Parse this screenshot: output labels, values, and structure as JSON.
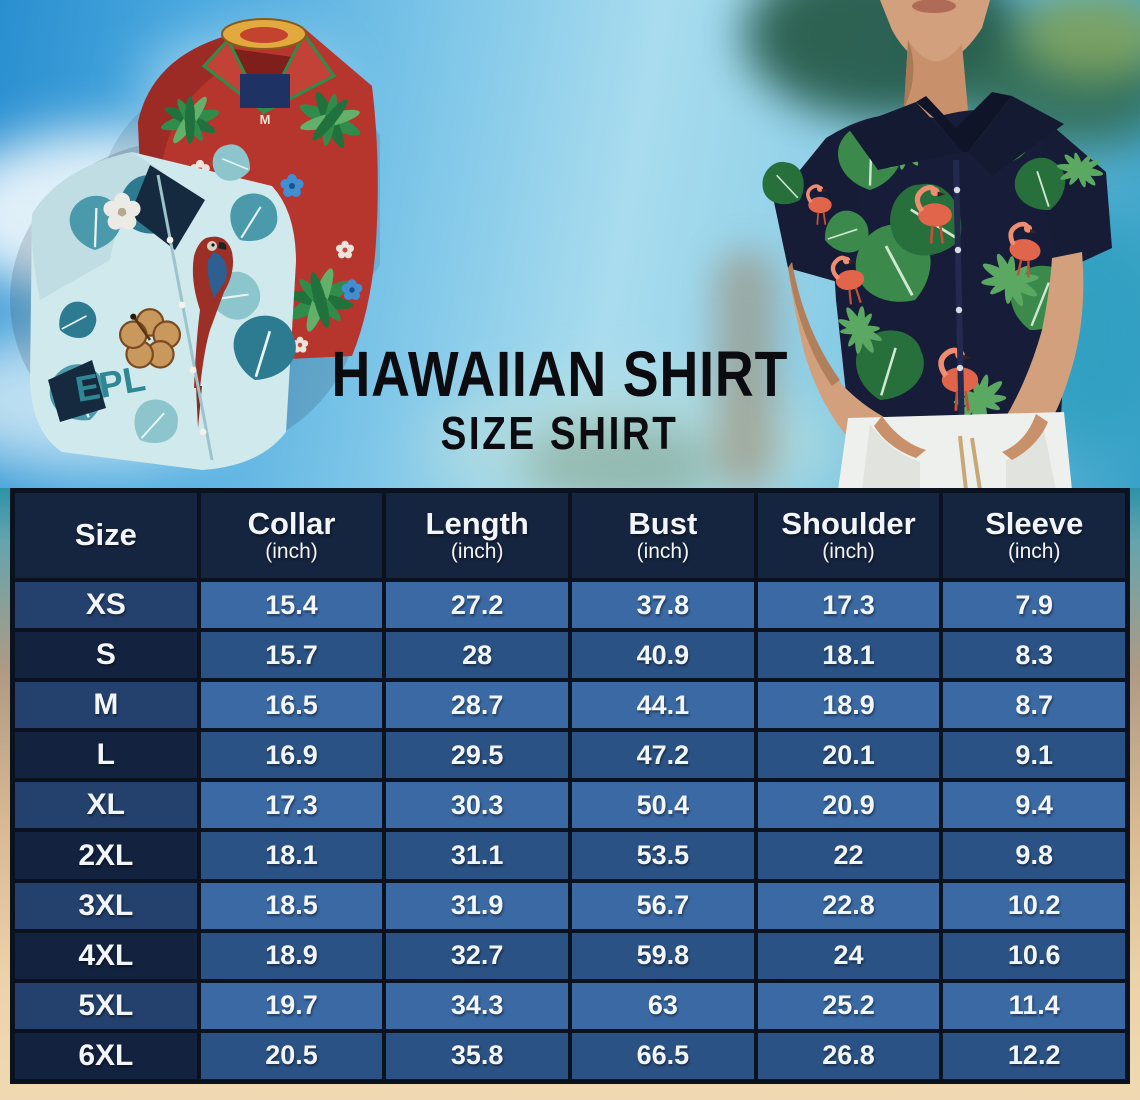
{
  "title": {
    "main": "HAWAIIAN SHIRT",
    "subtitle": "SIZE SHIRT"
  },
  "chart_data": {
    "type": "table",
    "title": "Hawaiian Shirt Size Chart",
    "columns": [
      {
        "label": "Size",
        "unit": ""
      },
      {
        "label": "Collar",
        "unit": "(inch)"
      },
      {
        "label": "Length",
        "unit": "(inch)"
      },
      {
        "label": "Bust",
        "unit": "(inch)"
      },
      {
        "label": "Shoulder",
        "unit": "(inch)"
      },
      {
        "label": "Sleeve",
        "unit": "(inch)"
      }
    ],
    "rows": [
      {
        "size": "XS",
        "values": [
          "15.4",
          "27.2",
          "37.8",
          "17.3",
          "7.9"
        ]
      },
      {
        "size": "S",
        "values": [
          "15.7",
          "28",
          "40.9",
          "18.1",
          "8.3"
        ]
      },
      {
        "size": "M",
        "values": [
          "16.5",
          "28.7",
          "44.1",
          "18.9",
          "8.7"
        ]
      },
      {
        "size": "L",
        "values": [
          "16.9",
          "29.5",
          "47.2",
          "20.1",
          "9.1"
        ]
      },
      {
        "size": "XL",
        "values": [
          "17.3",
          "30.3",
          "50.4",
          "20.9",
          "9.4"
        ]
      },
      {
        "size": "2XL",
        "values": [
          "18.1",
          "31.1",
          "53.5",
          "22",
          "9.8"
        ]
      },
      {
        "size": "3XL",
        "values": [
          "18.5",
          "31.9",
          "56.7",
          "22.8",
          "10.2"
        ]
      },
      {
        "size": "4XL",
        "values": [
          "18.9",
          "32.7",
          "59.8",
          "24",
          "10.6"
        ]
      },
      {
        "size": "5XL",
        "values": [
          "19.7",
          "34.3",
          "63",
          "25.2",
          "11.4"
        ]
      },
      {
        "size": "6XL",
        "values": [
          "20.5",
          "35.8",
          "66.5",
          "26.8",
          "12.2"
        ]
      }
    ]
  },
  "photo_text": {
    "teal_shirt_print": "EPL",
    "red_shirt_size_tag": "M"
  },
  "colors": {
    "header_bg": "#16253f",
    "size_cell_odd": "#24416e",
    "size_cell_even": "#13233f",
    "value_cell_odd": "#3a69a4",
    "value_cell_even": "#2b5284",
    "table_border": "#0a1220",
    "sky_blue": "#7cc5e8",
    "sand": "#ecd2a8",
    "title_text": "#0b0b10",
    "red_shirt": "#b6362e",
    "teal_shirt": "#cfe9ec",
    "model_shirt_navy": "#171d38",
    "leaf_green": "#3b8a4c",
    "flamingo": "#e0654a"
  }
}
